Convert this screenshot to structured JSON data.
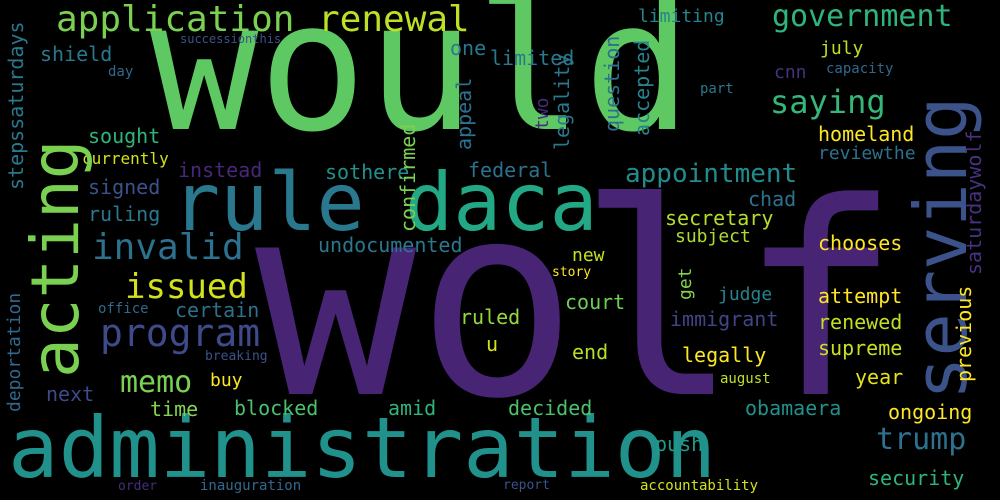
{
  "words": [
    {
      "text": "would",
      "color": "#5ec962"
    },
    {
      "text": "wolf",
      "color": "#482475"
    },
    {
      "text": "administration",
      "color": "#21918c"
    },
    {
      "text": "rule",
      "color": "#2a788e"
    },
    {
      "text": "daca",
      "color": "#22a884"
    },
    {
      "text": "acting",
      "color": "#7ad151"
    },
    {
      "text": "serving",
      "color": "#3b528b"
    },
    {
      "text": "application",
      "color": "#7ad151"
    },
    {
      "text": "renewal",
      "color": "#bddf26"
    },
    {
      "text": "government",
      "color": "#2fb47c"
    },
    {
      "text": "saying",
      "color": "#35b779"
    },
    {
      "text": "invalid",
      "color": "#2c728e"
    },
    {
      "text": "issued",
      "color": "#d2e21b"
    },
    {
      "text": "program",
      "color": "#3e4a89"
    },
    {
      "text": "memo",
      "color": "#7ad151"
    },
    {
      "text": "appointment",
      "color": "#228c8d"
    },
    {
      "text": "trump",
      "color": "#2c728e"
    },
    {
      "text": "shield",
      "color": "#2a788e"
    },
    {
      "text": "one",
      "color": "#2a788e"
    },
    {
      "text": "limited",
      "color": "#2a788e"
    },
    {
      "text": "limiting",
      "color": "#25848e"
    },
    {
      "text": "july",
      "color": "#bddf26"
    },
    {
      "text": "cnn",
      "color": "#46327e"
    },
    {
      "text": "capacity",
      "color": "#31688e"
    },
    {
      "text": "day",
      "color": "#31688e"
    },
    {
      "text": "successionthis",
      "color": "#3b528b"
    },
    {
      "text": "part",
      "color": "#2a788e"
    },
    {
      "text": "sought",
      "color": "#2fb47c"
    },
    {
      "text": "currently",
      "color": "#d2e21b"
    },
    {
      "text": "homeland",
      "color": "#fde725"
    },
    {
      "text": "reviewthe",
      "color": "#2c728e"
    },
    {
      "text": "instead",
      "color": "#482878"
    },
    {
      "text": "sothere",
      "color": "#21918c"
    },
    {
      "text": "federal",
      "color": "#2c728e"
    },
    {
      "text": "signed",
      "color": "#3b528b"
    },
    {
      "text": "chad",
      "color": "#2c728e"
    },
    {
      "text": "ruling",
      "color": "#2a788e"
    },
    {
      "text": "secretary",
      "color": "#b5de2b"
    },
    {
      "text": "subject",
      "color": "#addc30"
    },
    {
      "text": "chooses",
      "color": "#fde725"
    },
    {
      "text": "undocumented",
      "color": "#2a788e"
    },
    {
      "text": "new",
      "color": "#c8e020"
    },
    {
      "text": "story",
      "color": "#fde725"
    },
    {
      "text": "office",
      "color": "#31688e"
    },
    {
      "text": "certain",
      "color": "#2c728e"
    },
    {
      "text": "court",
      "color": "#6ece58"
    },
    {
      "text": "judge",
      "color": "#26828e"
    },
    {
      "text": "attempt",
      "color": "#fde725"
    },
    {
      "text": "ruled",
      "color": "#95d840"
    },
    {
      "text": "immigrant",
      "color": "#414487"
    },
    {
      "text": "renewed",
      "color": "#c2df23"
    },
    {
      "text": "u",
      "color": "#d2e21b"
    },
    {
      "text": "end",
      "color": "#b5de2b"
    },
    {
      "text": "legally",
      "color": "#fde725"
    },
    {
      "text": "supreme",
      "color": "#c8e020"
    },
    {
      "text": "breaking",
      "color": "#3b528b"
    },
    {
      "text": "buy",
      "color": "#fde725"
    },
    {
      "text": "august",
      "color": "#c2df23"
    },
    {
      "text": "year",
      "color": "#e5e419"
    },
    {
      "text": "next",
      "color": "#3e4a89"
    },
    {
      "text": "time",
      "color": "#84d44b"
    },
    {
      "text": "blocked",
      "color": "#4ac16d"
    },
    {
      "text": "amid",
      "color": "#2fb47c"
    },
    {
      "text": "decided",
      "color": "#4ac16d"
    },
    {
      "text": "obamaera",
      "color": "#21918c"
    },
    {
      "text": "ongoing",
      "color": "#fde725"
    },
    {
      "text": "push",
      "color": "#1f9a8a"
    },
    {
      "text": "security",
      "color": "#2fb47c"
    },
    {
      "text": "order",
      "color": "#472d7b"
    },
    {
      "text": "inauguration",
      "color": "#31688e"
    },
    {
      "text": "report",
      "color": "#3b528b"
    },
    {
      "text": "accountability",
      "color": "#d2e21b"
    },
    {
      "text": "stepssaturdays",
      "color": "#2a788e"
    },
    {
      "text": "deportation",
      "color": "#31688e"
    },
    {
      "text": "confirmed",
      "color": "#7ad151"
    },
    {
      "text": "appeal",
      "color": "#2c728e"
    },
    {
      "text": "two",
      "color": "#472d7b"
    },
    {
      "text": "legality",
      "color": "#2a788e"
    },
    {
      "text": "question",
      "color": "#2c728e"
    },
    {
      "text": "accepted",
      "color": "#25848e"
    },
    {
      "text": "saturdaywolf",
      "color": "#46327e"
    },
    {
      "text": "previous",
      "color": "#fde725"
    },
    {
      "text": "get",
      "color": "#84d44b"
    }
  ]
}
